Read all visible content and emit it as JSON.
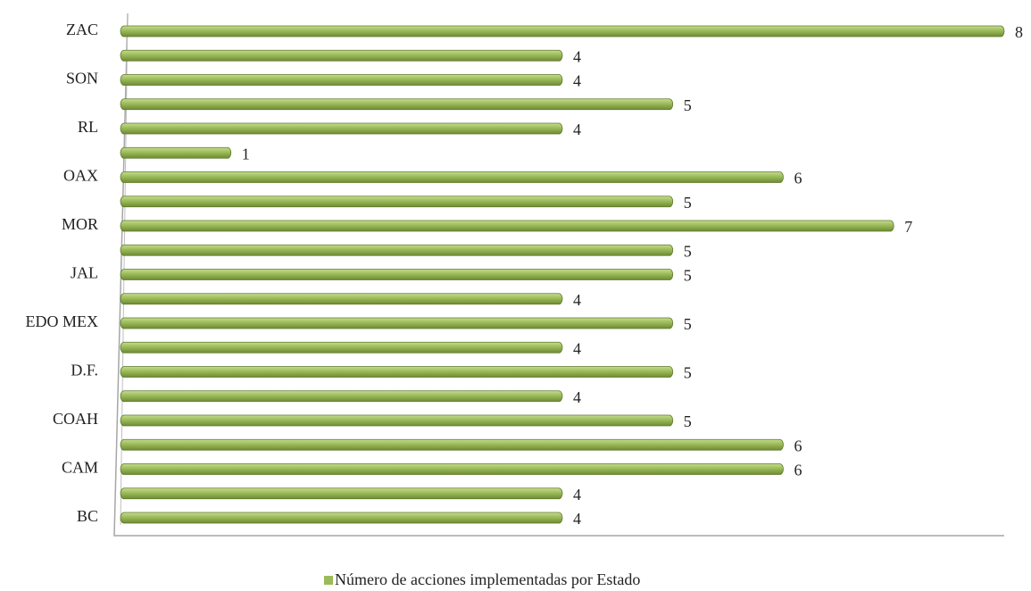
{
  "chart_data": {
    "type": "barh",
    "categories": [
      "BC",
      null,
      "CAM",
      null,
      "COAH",
      null,
      "D.F.",
      null,
      "EDO MEX",
      null,
      "JAL",
      null,
      "MOR",
      null,
      "OAX",
      null,
      "RL",
      null,
      "SON",
      null,
      "ZAC"
    ],
    "series": [
      {
        "name": "Número de acciones implementadas por Estado",
        "color": "#9bbb59",
        "values": [
          4,
          4,
          6,
          6,
          5,
          4,
          5,
          4,
          5,
          4,
          5,
          5,
          7,
          5,
          6,
          1,
          4,
          5,
          4,
          4,
          8
        ]
      }
    ],
    "xlim": [
      0,
      8
    ],
    "legend": "bottom"
  }
}
